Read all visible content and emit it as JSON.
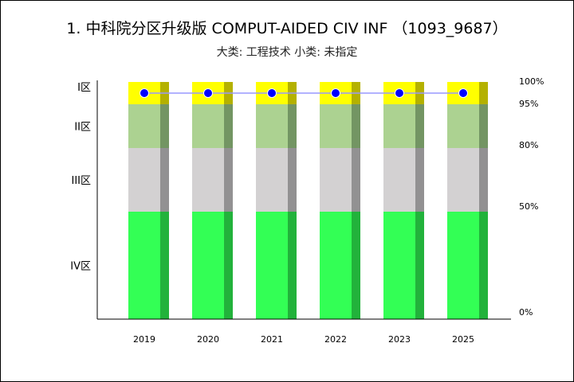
{
  "chart_data": {
    "type": "bar",
    "title": "1. 中科院分区升级版 COMPUT-AIDED CIV INF （1093_9687）",
    "subtitle": "大类: 工程技术 小类: 未指定",
    "categories": [
      "2019",
      "2020",
      "2021",
      "2022",
      "2023",
      "2025"
    ],
    "zones": [
      {
        "name": "IV区",
        "from": 0,
        "to": 50,
        "color": "#33ff55",
        "shade": "#22b23b"
      },
      {
        "name": "III区",
        "from": 50,
        "to": 80,
        "color": "#d3d1d2",
        "shade": "#929192"
      },
      {
        "name": "II区",
        "from": 80,
        "to": 95,
        "color": "#acd291",
        "shade": "#739563"
      },
      {
        "name": "I区",
        "from": 95,
        "to": 100,
        "color": "#ffff00",
        "shade": "#b4b100"
      }
    ],
    "right_ticks": [
      "0%",
      "50%",
      "80%",
      "95%",
      "100%"
    ],
    "right_tick_values": [
      0,
      50,
      80,
      95,
      100
    ],
    "series": [
      {
        "values": [
          "I区",
          "I区",
          "I区",
          "I区",
          "I区",
          "I区"
        ],
        "marker_color": "#0000ff",
        "line_color": "#9999ff"
      }
    ]
  }
}
